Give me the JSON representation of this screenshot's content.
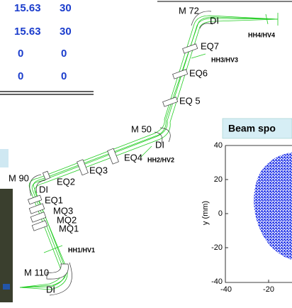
{
  "table": {
    "rows": [
      [
        "15.63",
        "30"
      ],
      [
        "15.63",
        "30"
      ],
      [
        "0",
        "0"
      ],
      [
        "0",
        "0"
      ]
    ]
  },
  "beamline": {
    "labels": [
      "M 72",
      "DI",
      "HH4/HV4",
      "EQ7",
      "HH3/HV3",
      "EQ6",
      "EQ 5",
      "M 50",
      "DI",
      "EQ4",
      "HH2/HV2",
      "EQ3",
      "EQ2",
      "M 90",
      "DI",
      "EQ1",
      "MQ3",
      "MQ2",
      "MQ1",
      "HH1/HV1",
      "M 110",
      "DI"
    ]
  },
  "plot": {
    "title": "Beam spo",
    "y_label": "y (mm)",
    "yticks": [
      "40",
      "20",
      "0",
      "-20",
      "-40"
    ],
    "xticks": [
      "-40",
      "-20"
    ]
  }
}
